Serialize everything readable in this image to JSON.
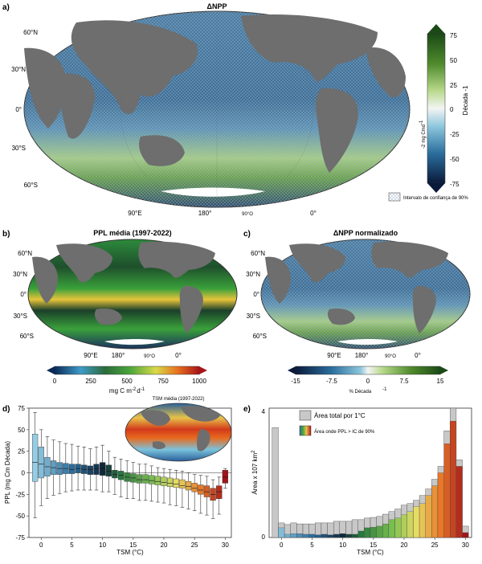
{
  "panels": {
    "a": {
      "letter": "a)",
      "title": "ΔNPP",
      "lat_labels": [
        "60°N",
        "30°N",
        "0°",
        "30°S",
        "60°S"
      ],
      "lon_labels": [
        "90°E",
        "180°",
        "90°O",
        "0°"
      ],
      "cbar": {
        "ticks": [
          "75",
          "50",
          "25",
          "0",
          "-25",
          "-50",
          "-75"
        ],
        "label_left": "mg Cmd",
        "label_sup": "-2",
        "label_sup2": "-1",
        "label_right": "Década -1",
        "ci_label": "Intervalo de confiança de 90%"
      }
    },
    "b": {
      "letter": "b)",
      "title": "PPL média (1997-2022)",
      "lat_labels": [
        "60°N",
        "30°N",
        "0°",
        "30°S",
        "60°S"
      ],
      "lon_labels": [
        "90°E",
        "180°",
        "90°O",
        "0°"
      ],
      "cbar": {
        "ticks": [
          "0",
          "250",
          "500",
          "750",
          "1000"
        ],
        "unit": "mg C m",
        "unit_sup1": "-2",
        "unit_mid": "d",
        "unit_sup2": "-1"
      }
    },
    "c": {
      "letter": "c)",
      "title": "ΔNPP normalizado",
      "lat_labels": [
        "60°N",
        "30°N",
        "0°",
        "30°S",
        "60°S"
      ],
      "lon_labels": [
        "90°E",
        "180°",
        "90°O",
        "0°"
      ],
      "cbar": {
        "ticks": [
          "-15",
          "-7.5",
          "0",
          "7.5",
          "15"
        ],
        "unit": "% Década",
        "unit_sup": "-1"
      }
    },
    "d": {
      "letter": "d)",
      "inset_title": "TSM média (1997-2022)",
      "ylabel": "PPL (mg Cm Década)",
      "ylabel_sup1": "-2",
      "ylabel_sup2": "-1",
      "xlabel": "TSM (°C)"
    },
    "e": {
      "letter": "e)",
      "ylabel": "Área x 107 km",
      "ylabel_sup": "2",
      "xlabel": "TSM (°C)",
      "legend_total": "Área total por 1°C",
      "legend_sig": "Área onde PPL > IC de 90%",
      "y_top": "4",
      "y_bottom": "0"
    }
  },
  "chart_data": [
    {
      "type": "box",
      "panel": "d",
      "xlabel": "TSM (°C)",
      "ylabel": "PPL (mg Cm Década)",
      "xlim": [
        -2,
        31
      ],
      "ylim": [
        -75,
        75
      ],
      "xticks": [
        0,
        5,
        10,
        15,
        20,
        25,
        30
      ],
      "yticks": [
        75,
        50,
        25,
        0,
        -25,
        -50,
        -75
      ],
      "x": [
        -1,
        0,
        1,
        2,
        3,
        4,
        5,
        6,
        7,
        8,
        9,
        10,
        11,
        12,
        13,
        14,
        15,
        16,
        17,
        18,
        19,
        20,
        21,
        22,
        23,
        24,
        25,
        26,
        27,
        28,
        29,
        30
      ],
      "q1": [
        -10,
        -6,
        -4,
        -2,
        -2,
        -1,
        -1,
        0,
        -1,
        -2,
        -2,
        -3,
        -4,
        -6,
        -8,
        -10,
        -11,
        -12,
        -12,
        -13,
        -14,
        -15,
        -16,
        -17,
        -18,
        -20,
        -22,
        -25,
        -28,
        -32,
        -30,
        -12
      ],
      "median": [
        12,
        10,
        7,
        6,
        5,
        5,
        4,
        5,
        4,
        4,
        5,
        5,
        2,
        -2,
        -3,
        -5,
        -6,
        -8,
        -8,
        -9,
        -10,
        -11,
        -12,
        -13,
        -15,
        -16,
        -18,
        -20,
        -22,
        -25,
        -22,
        -5
      ],
      "q3": [
        45,
        30,
        18,
        14,
        12,
        11,
        10,
        10,
        9,
        8,
        10,
        12,
        9,
        3,
        2,
        0,
        -1,
        -2,
        -2,
        -3,
        -4,
        -5,
        -6,
        -7,
        -8,
        -10,
        -12,
        -14,
        -15,
        -18,
        -15,
        3
      ],
      "whisker_low": [
        -52,
        -38,
        -30,
        -26,
        -24,
        -22,
        -21,
        -20,
        -20,
        -20,
        -20,
        -22,
        -22,
        -25,
        -28,
        -30,
        -30,
        -32,
        -32,
        -33,
        -34,
        -35,
        -37,
        -38,
        -40,
        -42,
        -44,
        -47,
        -49,
        -53,
        -48,
        -18
      ],
      "whisker_high": [
        70,
        50,
        42,
        38,
        36,
        34,
        33,
        31,
        30,
        28,
        30,
        32,
        25,
        18,
        16,
        14,
        12,
        10,
        10,
        8,
        6,
        5,
        4,
        3,
        2,
        0,
        -2,
        -3,
        -4,
        -8,
        -5,
        5
      ]
    },
    {
      "type": "bar",
      "panel": "e",
      "xlabel": "TSM (°C)",
      "ylabel": "Área x 107 km2",
      "xlim": [
        -2,
        31
      ],
      "ylim": [
        0,
        4
      ],
      "xticks": [
        0,
        5,
        10,
        15,
        20,
        25,
        30
      ],
      "x": [
        -1,
        0,
        1,
        2,
        3,
        4,
        5,
        6,
        7,
        8,
        9,
        10,
        11,
        12,
        13,
        14,
        15,
        16,
        17,
        18,
        19,
        20,
        21,
        22,
        23,
        24,
        25,
        26,
        27,
        28,
        29,
        30
      ],
      "series": [
        {
          "name": "Área total por 1°C",
          "values": [
            3.4,
            0.45,
            0.4,
            0.45,
            0.42,
            0.42,
            0.42,
            0.45,
            0.45,
            0.45,
            0.5,
            0.5,
            0.5,
            0.55,
            0.55,
            0.6,
            0.62,
            0.65,
            0.72,
            0.8,
            0.88,
            1.0,
            1.05,
            1.15,
            1.3,
            1.5,
            1.8,
            2.2,
            3.3,
            4.0,
            2.4,
            0.35
          ]
        },
        {
          "name": "Área onde PPL > IC de 90%",
          "values": [
            0,
            0.3,
            0.1,
            0.12,
            0.12,
            0.1,
            0.1,
            0.08,
            0.1,
            0.08,
            0.1,
            0.12,
            0.1,
            0.1,
            0.2,
            0.3,
            0.32,
            0.35,
            0.42,
            0.55,
            0.6,
            0.7,
            0.8,
            0.95,
            1.05,
            1.3,
            1.6,
            2.0,
            2.9,
            3.6,
            2.2,
            0.15
          ]
        }
      ]
    }
  ]
}
